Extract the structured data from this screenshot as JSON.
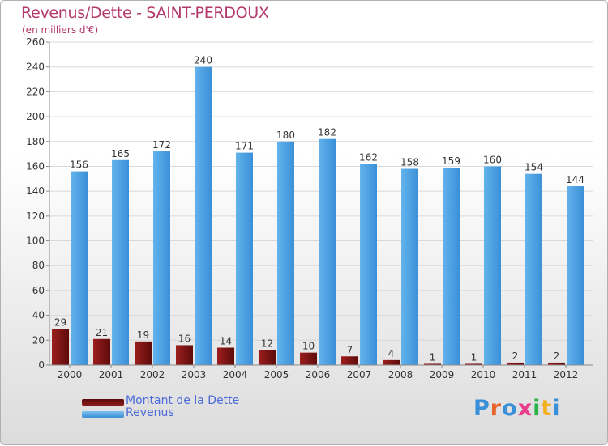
{
  "chart_data": {
    "type": "bar",
    "title": "Revenus/Dette - SAINT-PERDOUX",
    "subtitle": "(en milliers d'€)",
    "categories": [
      "2000",
      "2001",
      "2002",
      "2003",
      "2004",
      "2005",
      "2006",
      "2007",
      "2008",
      "2009",
      "2010",
      "2011",
      "2012"
    ],
    "series": [
      {
        "name": "Montant de la Dette",
        "values": [
          29,
          21,
          19,
          16,
          14,
          12,
          10,
          7,
          4,
          1,
          1,
          2,
          2
        ],
        "color": "#8b1a1a"
      },
      {
        "name": "Revenus",
        "values": [
          156,
          165,
          172,
          240,
          171,
          180,
          182,
          162,
          158,
          159,
          160,
          154,
          144
        ],
        "color": "#4fa3e3"
      }
    ],
    "ylim": [
      0,
      260
    ],
    "yticks": [
      0,
      20,
      40,
      60,
      80,
      100,
      120,
      140,
      160,
      180,
      200,
      220,
      240,
      260
    ],
    "legend_position": "bottom-left",
    "grid": true
  },
  "logo": {
    "text": "Proxiti",
    "letters": [
      "P",
      "r",
      "o",
      "x",
      "i",
      "t",
      "i"
    ],
    "colors": [
      "#3a8fd9",
      "#e8632b",
      "#3a8fd9",
      "#e83e8c",
      "#2bb34a",
      "#f2b01e",
      "#3a8fd9"
    ]
  }
}
